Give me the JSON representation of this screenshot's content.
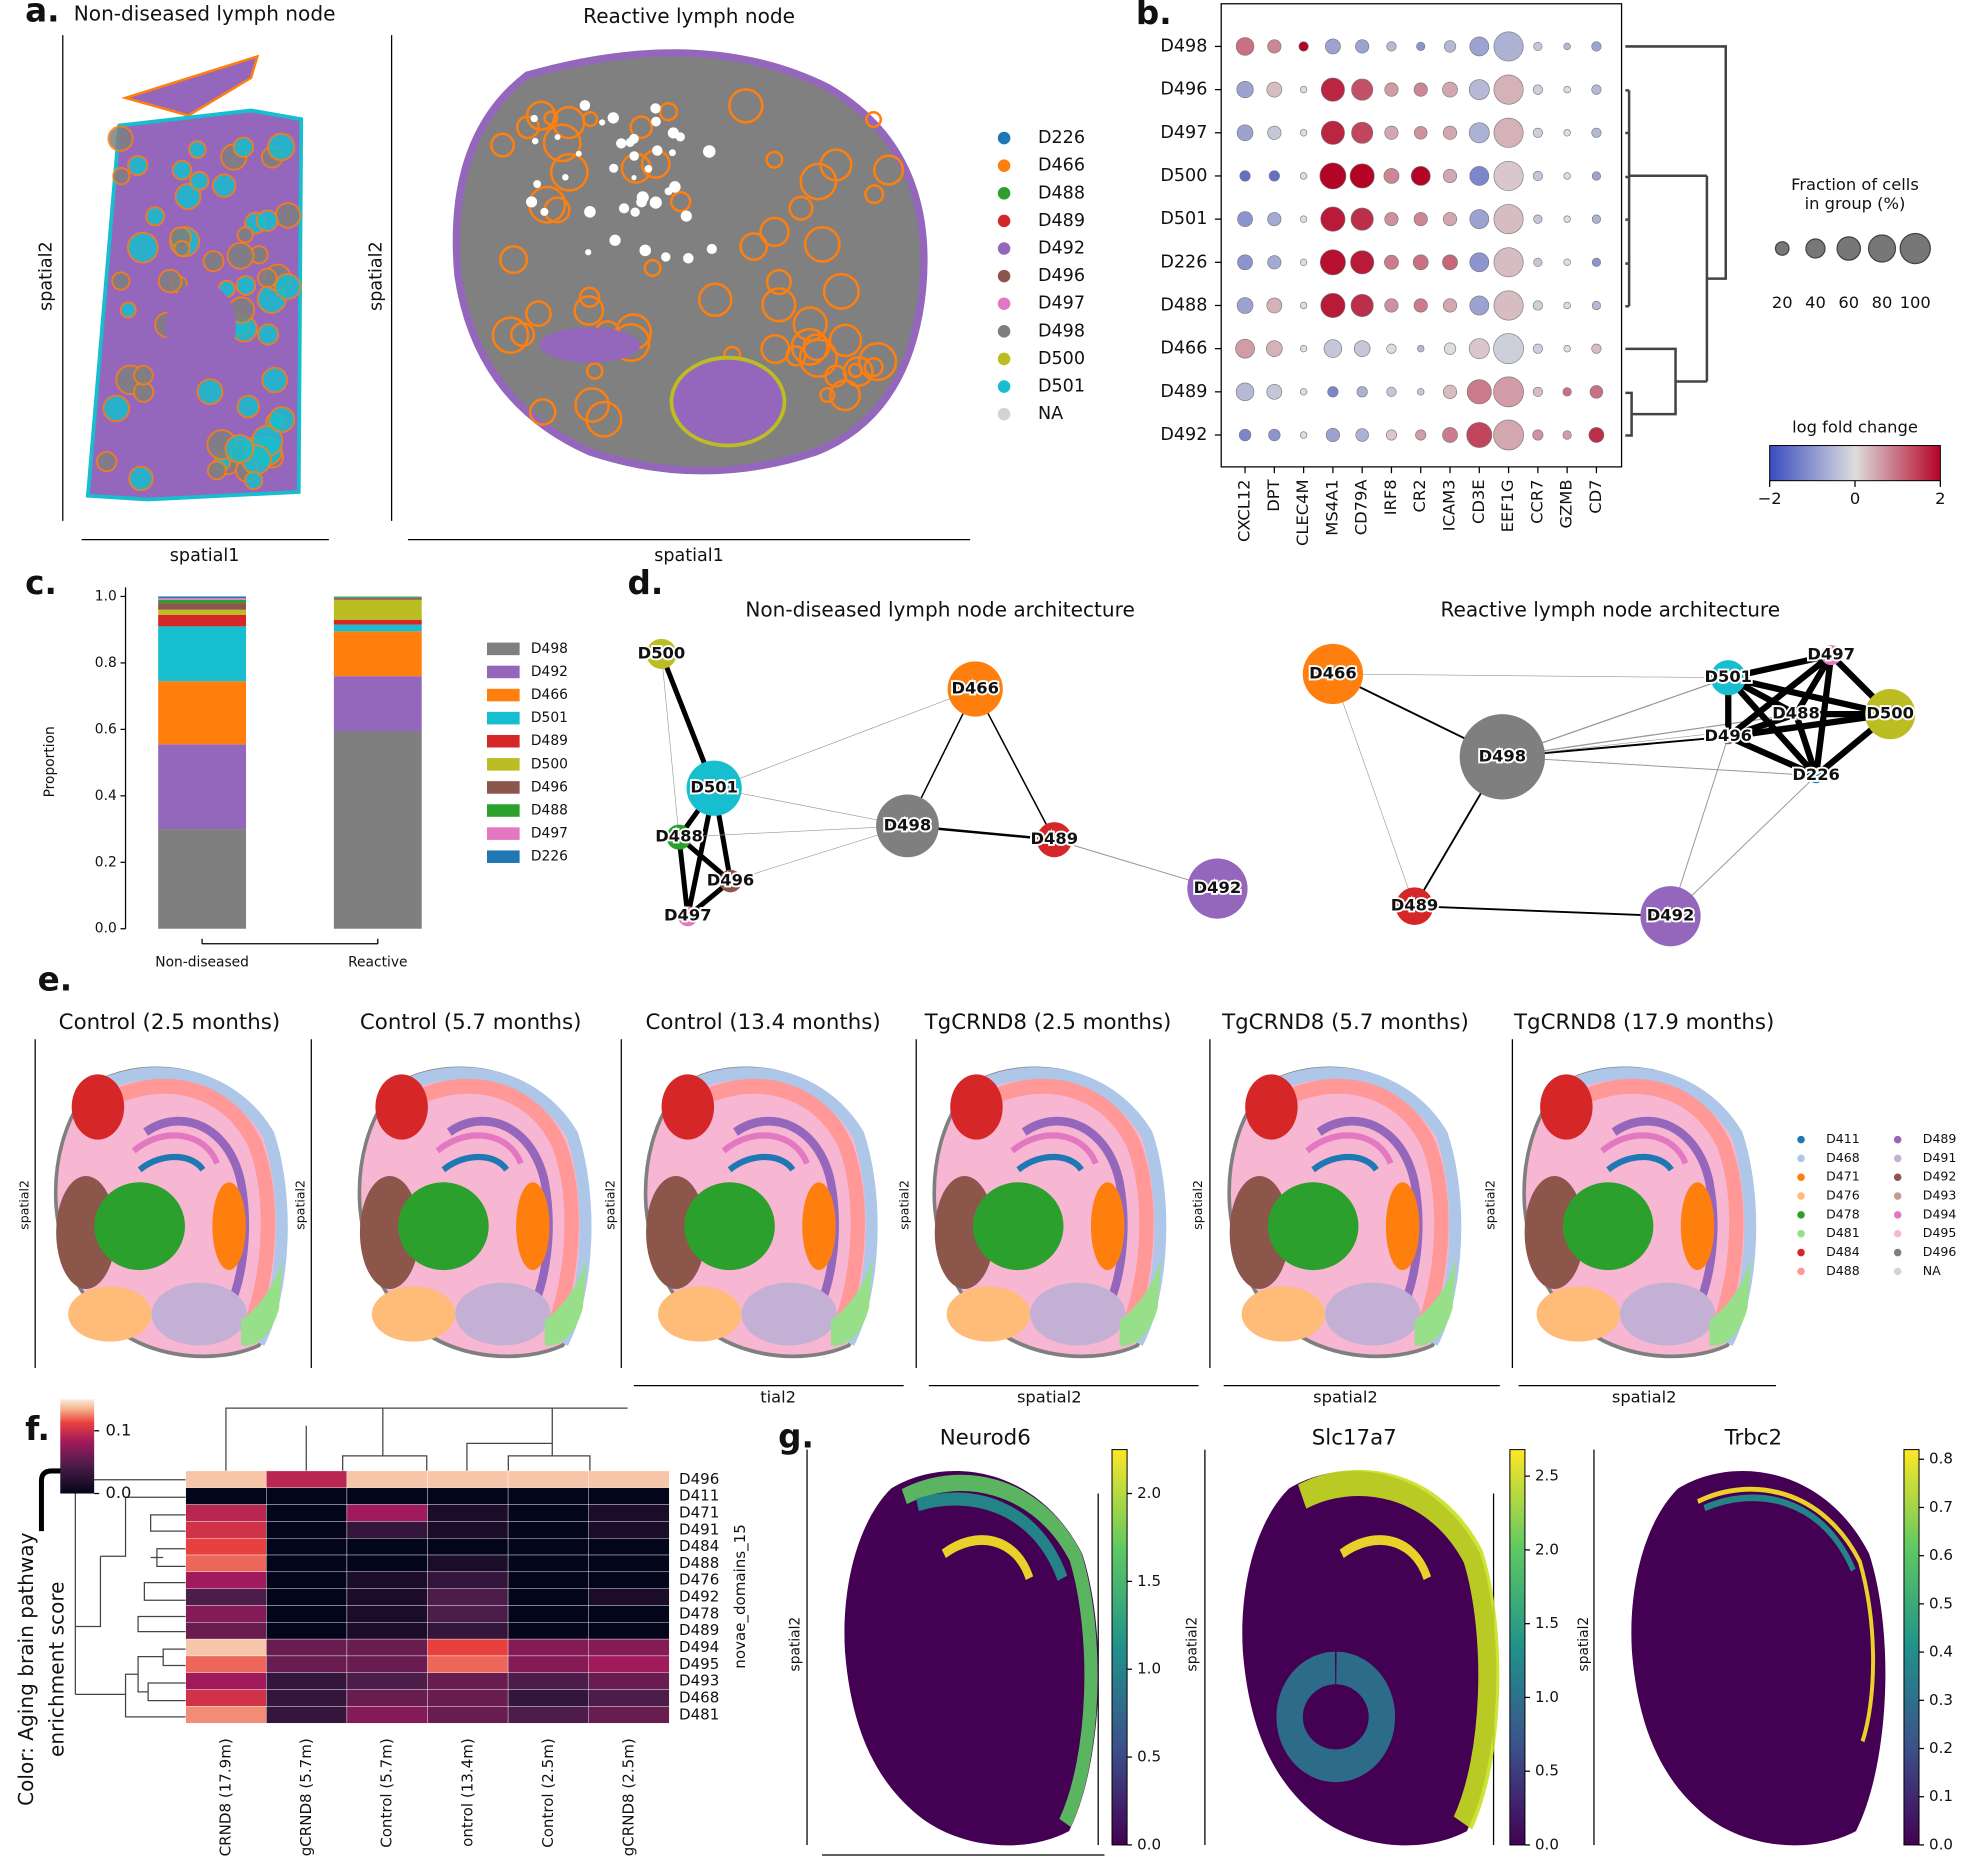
{
  "panel_labels": [
    "a.",
    "b.",
    "c.",
    "d.",
    "e.",
    "f.",
    "g."
  ],
  "panel_a": {
    "titles": [
      "Non-diseased lymph node",
      "Reactive lymph node"
    ],
    "xlabel": "spatial1",
    "ylabel": "spatial2",
    "legend": [
      {
        "name": "D226",
        "color": "#1f77b4"
      },
      {
        "name": "D466",
        "color": "#ff7f0e"
      },
      {
        "name": "D488",
        "color": "#2ca02c"
      },
      {
        "name": "D489",
        "color": "#d62728"
      },
      {
        "name": "D492",
        "color": "#9467bd"
      },
      {
        "name": "D496",
        "color": "#8c564b"
      },
      {
        "name": "D497",
        "color": "#e377c2"
      },
      {
        "name": "D498",
        "color": "#7f7f7f"
      },
      {
        "name": "D500",
        "color": "#bcbd22"
      },
      {
        "name": "D501",
        "color": "#17becf"
      },
      {
        "name": "NA",
        "color": "#d3d3d3"
      }
    ]
  },
  "panel_b": {
    "type": "dotplot",
    "rows": [
      "D498",
      "D496",
      "D497",
      "D500",
      "D501",
      "D226",
      "D488",
      "D466",
      "D489",
      "D492"
    ],
    "cols": [
      "CXCL12",
      "DPT",
      "CLEC4M",
      "MS4A1",
      "CD79A",
      "IRF8",
      "CR2",
      "ICAM3",
      "CD3E",
      "EEF1G",
      "CCR7",
      "GZMB",
      "CD7"
    ],
    "fraction": [
      [
        35,
        20,
        10,
        25,
        20,
        10,
        8,
        15,
        40,
        95,
        8,
        5,
        10
      ],
      [
        30,
        25,
        5,
        60,
        50,
        20,
        20,
        25,
        45,
        95,
        10,
        5,
        10
      ],
      [
        28,
        20,
        5,
        60,
        50,
        20,
        18,
        20,
        45,
        95,
        10,
        5,
        10
      ],
      [
        12,
        12,
        5,
        75,
        65,
        25,
        40,
        20,
        40,
        95,
        10,
        5,
        8
      ],
      [
        25,
        20,
        5,
        65,
        55,
        20,
        20,
        20,
        40,
        95,
        8,
        5,
        8
      ],
      [
        25,
        20,
        5,
        70,
        60,
        22,
        25,
        25,
        40,
        95,
        8,
        5,
        8
      ],
      [
        28,
        25,
        5,
        65,
        55,
        20,
        20,
        20,
        40,
        95,
        10,
        5,
        8
      ],
      [
        40,
        28,
        5,
        35,
        28,
        10,
        5,
        15,
        45,
        100,
        10,
        5,
        10
      ],
      [
        35,
        25,
        5,
        12,
        12,
        10,
        5,
        20,
        65,
        100,
        10,
        8,
        18
      ],
      [
        15,
        15,
        5,
        20,
        18,
        12,
        12,
        25,
        70,
        100,
        12,
        8,
        25
      ]
    ],
    "logfc": [
      [
        1.0,
        0.8,
        2.0,
        -0.8,
        -0.8,
        -0.5,
        -1.0,
        -0.5,
        -0.8,
        -0.6,
        -0.3,
        -0.5,
        -0.8
      ],
      [
        -0.8,
        0.3,
        0,
        1.7,
        1.3,
        0.6,
        0.8,
        0.5,
        -0.5,
        0.4,
        -0.2,
        0,
        -0.5
      ],
      [
        -0.8,
        -0.3,
        0,
        1.7,
        1.4,
        0.5,
        0.7,
        0.5,
        -0.6,
        0.4,
        -0.2,
        0,
        -0.5
      ],
      [
        -1.5,
        -1.5,
        0,
        2.0,
        2.0,
        0.8,
        2.0,
        0.5,
        -1.2,
        0.2,
        -0.3,
        0,
        -0.8
      ],
      [
        -1.0,
        -0.7,
        0,
        1.8,
        1.6,
        0.7,
        0.8,
        0.5,
        -0.8,
        0.3,
        -0.3,
        0,
        -0.6
      ],
      [
        -1.0,
        -0.7,
        0,
        1.9,
        1.8,
        0.9,
        1.0,
        1.1,
        -1.0,
        0.3,
        -0.3,
        0,
        -1.0
      ],
      [
        -0.8,
        0.4,
        0,
        1.8,
        1.6,
        0.7,
        0.9,
        0.5,
        -0.8,
        0.3,
        -0.2,
        0,
        -0.5
      ],
      [
        0.6,
        0.4,
        0,
        -0.3,
        -0.3,
        0,
        -0.5,
        0,
        0.2,
        -0.2,
        -0.2,
        0,
        0.3
      ],
      [
        -0.5,
        -0.3,
        0,
        -1.2,
        -0.6,
        -0.3,
        -0.3,
        0.3,
        0.9,
        0.6,
        0.3,
        1.0,
        1.0
      ],
      [
        -1.2,
        -1.0,
        0,
        -0.8,
        -0.6,
        0.2,
        0.6,
        0.9,
        1.4,
        0.5,
        0.7,
        0.6,
        1.6
      ]
    ],
    "size_title": [
      "Fraction of cells",
      "in group (%)"
    ],
    "size_ticks": [
      20,
      40,
      60,
      80,
      100
    ],
    "color_title": "log fold change",
    "clim": [
      -2,
      2
    ],
    "color_ticks": [
      {
        "value": -2,
        "label": "−2"
      },
      0,
      2
    ]
  },
  "panel_c": {
    "type": "bar",
    "stacked": true,
    "categories": [
      "Non-diseased",
      "Reactive"
    ],
    "ylabel": "Proportion",
    "ylim": [
      0,
      1.05
    ],
    "yticks": [
      {
        "value": 0,
        "label": "0.0"
      },
      0.2,
      0.4,
      0.6,
      0.8,
      {
        "value": 1,
        "label": "1.0"
      }
    ],
    "series": [
      {
        "name": "D498",
        "color": "#7f7f7f",
        "values": [
          0.3,
          0.595
        ]
      },
      {
        "name": "D492",
        "color": "#9467bd",
        "values": [
          0.255,
          0.165
        ]
      },
      {
        "name": "D466",
        "color": "#ff7f0e",
        "values": [
          0.19,
          0.135
        ]
      },
      {
        "name": "D501",
        "color": "#17becf",
        "values": [
          0.165,
          0.02
        ]
      },
      {
        "name": "D489",
        "color": "#d62728",
        "values": [
          0.035,
          0.015
        ]
      },
      {
        "name": "D500",
        "color": "#bcbd22",
        "values": [
          0.015,
          0.06
        ]
      },
      {
        "name": "D496",
        "color": "#8c564b",
        "values": [
          0.02,
          0.005
        ]
      },
      {
        "name": "D488",
        "color": "#2ca02c",
        "values": [
          0.01,
          0.003
        ]
      },
      {
        "name": "D497",
        "color": "#e377c2",
        "values": [
          0.005,
          0.001
        ]
      },
      {
        "name": "D226",
        "color": "#1f77b4",
        "values": [
          0.005,
          0.001
        ]
      }
    ]
  },
  "panel_d": {
    "titles": [
      "Non-diseased lymph node architecture",
      "Reactive lymph node architecture"
    ],
    "left_nodes": [
      "D500",
      "D501",
      "D488",
      "D496",
      "D497",
      "D466",
      "D498",
      "D489",
      "D492"
    ],
    "right_nodes": [
      "D466",
      "D498",
      "D501",
      "D497",
      "D488",
      "D500",
      "D496",
      "D226",
      "D489",
      "D492"
    ]
  },
  "panel_e": {
    "titles": [
      "Control (2.5 months)",
      "Control (5.7 months)",
      "Control (13.4 months)",
      "TgCRND8 (2.5 months)",
      "TgCRND8 (5.7 months)",
      "TgCRND8 (17.9 months)"
    ],
    "ylabel": "spatial2",
    "xlabels": [
      "tial2",
      "spatial2",
      "spatial2",
      "spatial2"
    ],
    "legend": [
      {
        "name": "D411",
        "color": "#1f77b4"
      },
      {
        "name": "D468",
        "color": "#aec7e8"
      },
      {
        "name": "D471",
        "color": "#ff7f0e"
      },
      {
        "name": "D476",
        "color": "#ffbb78"
      },
      {
        "name": "D478",
        "color": "#2ca02c"
      },
      {
        "name": "D481",
        "color": "#98df8a"
      },
      {
        "name": "D484",
        "color": "#d62728"
      },
      {
        "name": "D488",
        "color": "#ff9896"
      },
      {
        "name": "D489",
        "color": "#9467bd"
      },
      {
        "name": "D491",
        "color": "#c5b0d5"
      },
      {
        "name": "D492",
        "color": "#8c564b"
      },
      {
        "name": "D493",
        "color": "#c49c94"
      },
      {
        "name": "D494",
        "color": "#e377c2"
      },
      {
        "name": "D495",
        "color": "#f7b6d2"
      },
      {
        "name": "D496",
        "color": "#7f7f7f"
      },
      {
        "name": "NA",
        "color": "#d3d3d3"
      }
    ]
  },
  "panel_f": {
    "type": "heatmap",
    "rows": [
      "D496",
      "D411",
      "D471",
      "D491",
      "D484",
      "D488",
      "D476",
      "D492",
      "D478",
      "D489",
      "D494",
      "D495",
      "D493",
      "D468",
      "D481"
    ],
    "cols": [
      "CRND8 (17.9m)",
      "gCRND8 (5.7m)",
      "Control (5.7m)",
      "ontrol (13.4m)",
      "Control (2.5m)",
      "gCRND8 (2.5m)"
    ],
    "ylabel": "novae_domains_15",
    "colorbar_label": [
      "Color: Aging brain pathway",
      "enrichment score"
    ],
    "clim": [
      0,
      0.15
    ],
    "cticks": [
      {
        "value": 0,
        "label": "0.0"
      },
      0.1
    ],
    "values": [
      [
        0.13,
        0.07,
        0.13,
        0.13,
        0.13,
        0.13
      ],
      [
        0.0,
        0.0,
        0.0,
        0.0,
        0.0,
        0.0
      ],
      [
        0.07,
        0.0,
        0.06,
        0.01,
        0.0,
        0.01
      ],
      [
        0.08,
        0.0,
        0.02,
        0.01,
        0.0,
        0.01
      ],
      [
        0.09,
        0.0,
        0.0,
        0.0,
        0.0,
        0.0
      ],
      [
        0.1,
        0.0,
        0.0,
        0.01,
        0.0,
        0.0
      ],
      [
        0.06,
        0.0,
        0.01,
        0.02,
        0.0,
        0.0
      ],
      [
        0.03,
        0.0,
        0.01,
        0.03,
        0.0,
        0.01
      ],
      [
        0.05,
        0.0,
        0.01,
        0.03,
        0.0,
        0.0
      ],
      [
        0.04,
        0.0,
        0.01,
        0.02,
        0.0,
        0.0
      ],
      [
        0.13,
        0.04,
        0.04,
        0.09,
        0.05,
        0.05
      ],
      [
        0.1,
        0.04,
        0.04,
        0.1,
        0.05,
        0.06
      ],
      [
        0.06,
        0.02,
        0.03,
        0.04,
        0.03,
        0.04
      ],
      [
        0.08,
        0.02,
        0.04,
        0.04,
        0.02,
        0.03
      ],
      [
        0.11,
        0.02,
        0.05,
        0.04,
        0.03,
        0.04
      ]
    ]
  },
  "panel_g": {
    "ylabel": "spatial2",
    "maps": [
      {
        "title": "Neurod6",
        "clim": [
          0,
          2.25
        ],
        "ticks": [
          {
            "value": 0,
            "label": "0.0"
          },
          0.5,
          {
            "value": 1,
            "label": "1.0"
          },
          1.5,
          {
            "value": 2,
            "label": "2.0"
          }
        ]
      },
      {
        "title": "Slc17a7",
        "clim": [
          0,
          2.68
        ],
        "ticks": [
          {
            "value": 0,
            "label": "0.0"
          },
          0.5,
          {
            "value": 1,
            "label": "1.0"
          },
          1.5,
          {
            "value": 2,
            "label": "2.0"
          },
          2.5
        ]
      },
      {
        "title": "Trbc2",
        "clim": [
          0,
          0.82
        ],
        "ticks": [
          {
            "value": 0,
            "label": "0.0"
          },
          0.1,
          0.2,
          0.3,
          0.4,
          0.5,
          0.6,
          0.7,
          0.8
        ]
      }
    ]
  }
}
